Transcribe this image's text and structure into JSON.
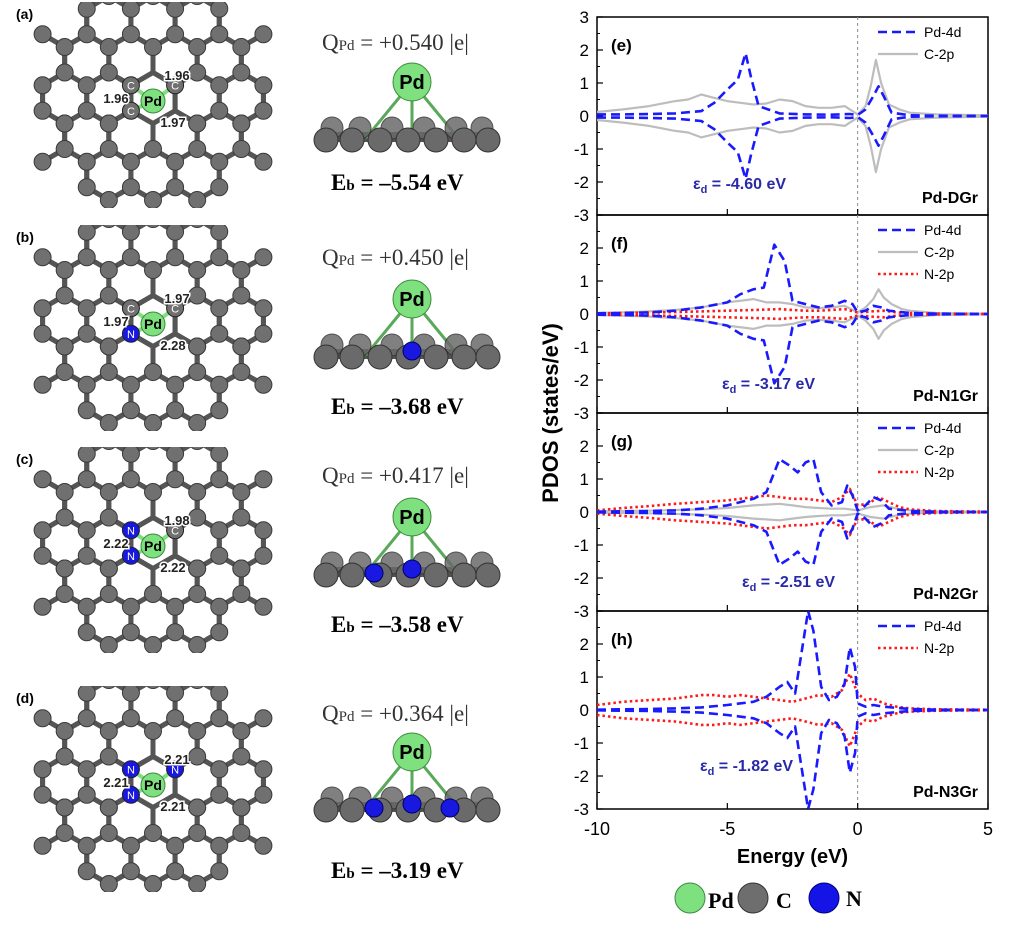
{
  "figure": {
    "structures": [
      {
        "label": "(a)",
        "charge_prefix": "Q",
        "charge_sub": "Pd",
        "charge_value": " = +0.540 |e|",
        "energy_prefix": "E",
        "energy_sub": "b",
        "energy_value": " = –5.54 eV",
        "bond_labels": [
          "1.96",
          "1.96",
          "1.97"
        ],
        "neighbors": [
          "C",
          "C",
          "C"
        ]
      },
      {
        "label": "(b)",
        "charge_prefix": "Q",
        "charge_sub": "Pd",
        "charge_value": " = +0.450 |e|",
        "energy_prefix": "E",
        "energy_sub": "b",
        "energy_value": " = –3.68 eV",
        "bond_labels": [
          "1.97",
          "1.97",
          "2.28"
        ],
        "neighbors": [
          "C",
          "C",
          "N"
        ]
      },
      {
        "label": "(c)",
        "charge_prefix": "Q",
        "charge_sub": "Pd",
        "charge_value": " = +0.417 |e|",
        "energy_prefix": "E",
        "energy_sub": "b",
        "energy_value": " = –3.58 eV",
        "bond_labels": [
          "2.22",
          "1.98",
          "2.22"
        ],
        "neighbors": [
          "N",
          "C",
          "N"
        ]
      },
      {
        "label": "(d)",
        "charge_prefix": "Q",
        "charge_sub": "Pd",
        "charge_value": " = +0.364 |e|",
        "energy_prefix": "E",
        "energy_sub": "b",
        "energy_value": " = –3.19 eV",
        "bond_labels": [
          "2.21",
          "2.21",
          "2.21"
        ],
        "neighbors": [
          "N",
          "N",
          "N"
        ]
      }
    ],
    "atom_legend": [
      {
        "symbol": "Pd",
        "color": "#7ee07e"
      },
      {
        "symbol": "C",
        "color": "#6e6e6e"
      },
      {
        "symbol": "N",
        "color": "#1414e6"
      }
    ],
    "atom_colors": {
      "Pd": "#7ee07e",
      "C": "#707070",
      "N": "#1818e0"
    }
  },
  "chart_data": {
    "type": "line",
    "xlabel": "Energy (eV)",
    "ylabel": "PDOS (states/eV)",
    "xlim": [
      -10,
      5
    ],
    "ylim": [
      -3,
      3
    ],
    "xticks": [
      -10,
      -5,
      0,
      5
    ],
    "yticks": [
      -3,
      -2,
      -1,
      0,
      1,
      2,
      3
    ],
    "fermi_level": 0,
    "series_styles": {
      "Pd-4d": {
        "color": "#1a1aff",
        "dash": "dashed"
      },
      "C-2p": {
        "color": "#bdbdbd",
        "dash": "solid"
      },
      "N-2p": {
        "color": "#ff1a1a",
        "dash": "dotted"
      }
    },
    "panels": [
      {
        "label": "(e)",
        "system": "Pd-DGr",
        "d_band_center_label": "-4.60 eV",
        "series": [
          {
            "name": "Pd-4d",
            "x": [
              -10,
              -9,
              -8,
              -7,
              -6,
              -5.5,
              -5,
              -4.6,
              -4.3,
              -4.1,
              -3.8,
              -3,
              -2,
              -1,
              -0.3,
              0,
              0.3,
              0.6,
              0.8,
              1.0,
              1.3,
              2,
              3,
              5
            ],
            "y": [
              0.05,
              0.05,
              0.06,
              0.08,
              0.15,
              0.4,
              0.8,
              1.1,
              1.9,
              1.2,
              0.3,
              0.08,
              0.05,
              0.04,
              0.06,
              0.03,
              0.2,
              0.6,
              0.9,
              0.6,
              0.1,
              0.02,
              0.01,
              0.0
            ],
            "mirror": true
          },
          {
            "name": "C-2p",
            "x": [
              -10,
              -9,
              -8,
              -7,
              -6.5,
              -6,
              -5.5,
              -5,
              -4.5,
              -4,
              -3.5,
              -3,
              -2.5,
              -2,
              -1.5,
              -1,
              -0.5,
              0,
              0.3,
              0.5,
              0.7,
              0.9,
              1.2,
              1.6,
              2,
              3,
              5
            ],
            "y": [
              0.12,
              0.2,
              0.3,
              0.45,
              0.5,
              0.65,
              0.55,
              0.45,
              0.4,
              0.35,
              0.38,
              0.5,
              0.45,
              0.3,
              0.25,
              0.25,
              0.3,
              0.05,
              0.3,
              0.9,
              1.7,
              1.0,
              0.35,
              0.2,
              0.1,
              0.05,
              0.02
            ],
            "mirror": true
          }
        ]
      },
      {
        "label": "(f)",
        "system": "Pd-N1Gr",
        "d_band_center_label": "-3.17 eV",
        "series": [
          {
            "name": "Pd-4d",
            "x": [
              -10,
              -9,
              -8,
              -7,
              -6,
              -5,
              -4.5,
              -4,
              -3.6,
              -3.2,
              -2.8,
              -2.5,
              -2,
              -1.5,
              -1,
              -0.5,
              -0.2,
              0,
              0.3,
              0.6,
              0.9,
              1.2,
              2,
              3,
              5
            ],
            "y": [
              0.02,
              0.03,
              0.05,
              0.1,
              0.2,
              0.35,
              0.6,
              0.75,
              0.8,
              2.1,
              1.6,
              0.4,
              0.3,
              0.2,
              0.25,
              0.4,
              0.3,
              0.05,
              0.1,
              0.25,
              0.2,
              0.1,
              0.03,
              0.01,
              0.0
            ],
            "mirror": true
          },
          {
            "name": "C-2p",
            "x": [
              -10,
              -9,
              -8,
              -7,
              -6,
              -5,
              -4,
              -3.5,
              -3,
              -2.5,
              -2,
              -1.5,
              -1,
              -0.5,
              0,
              0.3,
              0.6,
              0.8,
              1.0,
              1.3,
              1.7,
              2,
              3,
              5
            ],
            "y": [
              0.03,
              0.05,
              0.08,
              0.12,
              0.2,
              0.35,
              0.45,
              0.35,
              0.35,
              0.3,
              0.2,
              0.18,
              0.2,
              0.25,
              0.05,
              0.2,
              0.45,
              0.75,
              0.5,
              0.3,
              0.15,
              0.1,
              0.03,
              0.01
            ],
            "mirror": true
          },
          {
            "name": "N-2p",
            "x": [
              -10,
              -9,
              -8,
              -7,
              -6,
              -5,
              -4,
              -3,
              -2.5,
              -2,
              -1.5,
              -1,
              -0.5,
              0,
              0.5,
              1,
              1.5,
              2,
              3,
              5
            ],
            "y": [
              0.02,
              0.03,
              0.04,
              0.06,
              0.08,
              0.1,
              0.12,
              0.15,
              0.12,
              0.1,
              0.1,
              0.12,
              0.15,
              0.05,
              0.08,
              0.1,
              0.05,
              0.03,
              0.01,
              0.0
            ],
            "mirror": true
          }
        ]
      },
      {
        "label": "(g)",
        "system": "Pd-N2Gr",
        "d_band_center_label": "-2.51 eV",
        "series": [
          {
            "name": "Pd-4d",
            "x": [
              -10,
              -9,
              -8,
              -7,
              -6,
              -5,
              -4,
              -3.5,
              -3,
              -2.6,
              -2.3,
              -2,
              -1.7,
              -1.4,
              -1,
              -0.6,
              -0.4,
              -0.2,
              0,
              0.3,
              0.6,
              0.9,
              1.2,
              2,
              3,
              5
            ],
            "y": [
              0.01,
              0.02,
              0.03,
              0.05,
              0.1,
              0.2,
              0.4,
              0.6,
              1.6,
              1.4,
              1.2,
              1.5,
              1.6,
              0.6,
              0.2,
              0.3,
              0.8,
              0.5,
              0.05,
              0.2,
              0.45,
              0.35,
              0.1,
              0.03,
              0.01,
              0.0
            ],
            "mirror": true
          },
          {
            "name": "C-2p",
            "x": [
              -10,
              -8,
              -6,
              -5,
              -4,
              -3,
              -2.5,
              -2,
              -1.5,
              -1,
              -0.5,
              0,
              0.5,
              1,
              1.5,
              2,
              3,
              5
            ],
            "y": [
              0.02,
              0.04,
              0.08,
              0.12,
              0.2,
              0.25,
              0.2,
              0.15,
              0.12,
              0.1,
              0.1,
              0.05,
              0.15,
              0.2,
              0.1,
              0.05,
              0.02,
              0.01
            ],
            "mirror": true
          },
          {
            "name": "N-2p",
            "x": [
              -10,
              -9,
              -8,
              -7,
              -6,
              -5,
              -4.5,
              -4,
              -3.5,
              -3,
              -2.5,
              -2,
              -1.5,
              -1,
              -0.6,
              -0.3,
              0,
              0.4,
              0.8,
              1.2,
              1.6,
              2,
              3,
              5
            ],
            "y": [
              0.05,
              0.12,
              0.18,
              0.25,
              0.3,
              0.35,
              0.4,
              0.45,
              0.5,
              0.45,
              0.4,
              0.4,
              0.35,
              0.3,
              0.45,
              0.7,
              0.2,
              0.25,
              0.45,
              0.3,
              0.15,
              0.08,
              0.03,
              0.01
            ],
            "mirror": true
          }
        ]
      },
      {
        "label": "(h)",
        "system": "Pd-N3Gr",
        "d_band_center_label": "-1.82 eV",
        "series": [
          {
            "name": "Pd-4d",
            "x": [
              -10,
              -9,
              -8,
              -7,
              -6,
              -5,
              -4,
              -3.5,
              -3,
              -2.7,
              -2.4,
              -2.1,
              -1.9,
              -1.7,
              -1.4,
              -1.1,
              -0.8,
              -0.5,
              -0.3,
              -0.1,
              0,
              0.3,
              0.6,
              1,
              2,
              3,
              5
            ],
            "y": [
              0.01,
              0.02,
              0.03,
              0.05,
              0.08,
              0.15,
              0.25,
              0.4,
              0.7,
              0.85,
              0.5,
              2.0,
              3.0,
              2.4,
              0.7,
              0.3,
              0.4,
              0.8,
              1.9,
              1.3,
              0.2,
              0.1,
              0.15,
              0.1,
              0.03,
              0.01,
              0.0
            ],
            "mirror": true
          },
          {
            "name": "N-2p",
            "x": [
              -10,
              -9,
              -8,
              -7,
              -6.5,
              -6,
              -5.5,
              -5,
              -4.5,
              -4,
              -3.5,
              -3,
              -2.5,
              -2,
              -1.5,
              -1,
              -0.6,
              -0.3,
              0,
              0.3,
              0.6,
              1,
              1.5,
              2,
              3,
              5
            ],
            "y": [
              0.15,
              0.25,
              0.3,
              0.35,
              0.4,
              0.45,
              0.45,
              0.4,
              0.45,
              0.4,
              0.35,
              0.3,
              0.25,
              0.35,
              0.45,
              0.4,
              0.6,
              1.1,
              0.5,
              0.3,
              0.35,
              0.2,
              0.1,
              0.05,
              0.02,
              0.01
            ],
            "mirror": true
          }
        ]
      }
    ]
  }
}
